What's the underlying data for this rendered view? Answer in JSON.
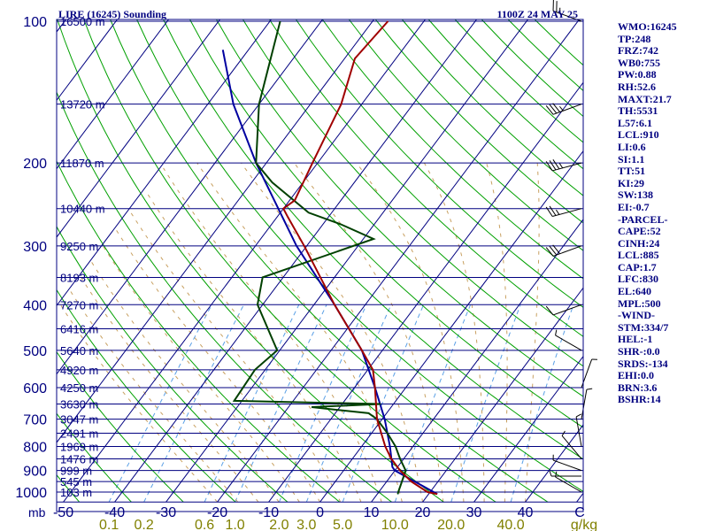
{
  "header": {
    "title": "LIRE (16245) Sounding",
    "time": "1100Z 24 MAY 25"
  },
  "indices": [
    "WMO:16245",
    "TP:248",
    "FRZ:742",
    "WB0:755",
    "PW:0.88",
    "RH:52.6",
    "MAXT:21.7",
    "TH:5531",
    "L57:6.1",
    "LCL:910",
    "LI:0.6",
    "SI:1.1",
    "TT:51",
    "KI:29",
    "SW:138",
    "EI:-0.7",
    "-PARCEL-",
    "CAPE:52",
    "CINH:24",
    "LCL:885",
    "CAP:1.7",
    "LFC:830",
    "EL:640",
    "MPL:500",
    "-WIND-",
    "STM:334/7",
    "HEL:-1",
    "SHR-:0.0",
    "SRDS:-134",
    "EHI:0.0",
    "BRN:3.6",
    "BSHR:14"
  ],
  "colors": {
    "background": "#ffffff",
    "text": "#000080",
    "isobar": "#000080",
    "isotherm": "#000080",
    "dry_adiabat": "#00a000",
    "moist_adiabat": "#c8a060",
    "mixing_ratio": "#5aa0e6",
    "temperature": "#a00000",
    "dewpoint": "#004000",
    "parcel": "#0000a0",
    "wind": "#000000",
    "mixing_label": "#808000"
  },
  "chart_data": {
    "type": "skew-t",
    "pressure_levels": [
      100,
      200,
      300,
      400,
      500,
      600,
      700,
      800,
      900,
      1000
    ],
    "pressure_unit_label": "mb",
    "temperature_ticks": [
      -50,
      -40,
      -30,
      -20,
      -10,
      0,
      10,
      20,
      30,
      40
    ],
    "temperature_unit_label": "C",
    "mixing_ratio_ticks": [
      "0.1",
      "0.2",
      "0.6",
      "1.0",
      "2.0",
      "3.0",
      "5.0",
      "10.0",
      "20.0",
      "40.0"
    ],
    "mixing_ratio_unit_label": "g/kg",
    "height_labels": [
      {
        "p": 100,
        "t": "16500 m"
      },
      {
        "p": 150,
        "t": "13720 m"
      },
      {
        "p": 200,
        "t": "11870 m"
      },
      {
        "p": 250,
        "t": "10440 m"
      },
      {
        "p": 300,
        "t": "9250 m"
      },
      {
        "p": 350,
        "t": "8193 m"
      },
      {
        "p": 400,
        "t": "7270 m"
      },
      {
        "p": 450,
        "t": "6416 m"
      },
      {
        "p": 500,
        "t": "5640 m"
      },
      {
        "p": 550,
        "t": "4920 m"
      },
      {
        "p": 600,
        "t": "4250 m"
      },
      {
        "p": 650,
        "t": "3630 m"
      },
      {
        "p": 700,
        "t": "3047 m"
      },
      {
        "p": 750,
        "t": "2491 m"
      },
      {
        "p": 800,
        "t": "1969 m"
      },
      {
        "p": 850,
        "t": "1476 m"
      },
      {
        "p": 900,
        "t": "999 m"
      },
      {
        "p": 950,
        "t": "545 m"
      },
      {
        "p": 1000,
        "t": "103 m"
      }
    ],
    "temperature_profile": [
      {
        "p": 1010,
        "t": 21.7
      },
      {
        "p": 1000,
        "t": 19.5
      },
      {
        "p": 950,
        "t": 14.8
      },
      {
        "p": 900,
        "t": 11.0
      },
      {
        "p": 850,
        "t": 7.6
      },
      {
        "p": 800,
        "t": 4.6
      },
      {
        "p": 700,
        "t": -1.0
      },
      {
        "p": 650,
        "t": -3.4
      },
      {
        "p": 600,
        "t": -6.0
      },
      {
        "p": 550,
        "t": -9.0
      },
      {
        "p": 500,
        "t": -14.0
      },
      {
        "p": 400,
        "t": -26.0
      },
      {
        "p": 300,
        "t": -40.5
      },
      {
        "p": 260,
        "t": -48.0
      },
      {
        "p": 250,
        "t": -50.0
      },
      {
        "p": 240,
        "t": -49.0
      },
      {
        "p": 200,
        "t": -51.0
      },
      {
        "p": 150,
        "t": -54.0
      },
      {
        "p": 120,
        "t": -58.0
      },
      {
        "p": 100,
        "t": -57.0
      }
    ],
    "dewpoint_profile": [
      {
        "p": 1010,
        "t": 14.0
      },
      {
        "p": 1000,
        "t": 13.8
      },
      {
        "p": 900,
        "t": 12.1
      },
      {
        "p": 850,
        "t": 9.3
      },
      {
        "p": 800,
        "t": 6.6
      },
      {
        "p": 750,
        "t": 3.1
      },
      {
        "p": 700,
        "t": -1.0
      },
      {
        "p": 680,
        "t": -3.5
      },
      {
        "p": 660,
        "t": -15.5
      },
      {
        "p": 650,
        "t": -2.5
      },
      {
        "p": 640,
        "t": -31.5
      },
      {
        "p": 550,
        "t": -32.0
      },
      {
        "p": 500,
        "t": -30.5
      },
      {
        "p": 400,
        "t": -41.0
      },
      {
        "p": 350,
        "t": -44.0
      },
      {
        "p": 290,
        "t": -28.0
      },
      {
        "p": 270,
        "t": -36.5
      },
      {
        "p": 255,
        "t": -44.5
      },
      {
        "p": 220,
        "t": -56.0
      },
      {
        "p": 200,
        "t": -62.0
      },
      {
        "p": 150,
        "t": -70.0
      },
      {
        "p": 100,
        "t": -78.0
      }
    ],
    "parcel_profile": [
      {
        "p": 1010,
        "t": 21.7
      },
      {
        "p": 900,
        "t": 10.0
      },
      {
        "p": 885,
        "t": 9.0
      },
      {
        "p": 800,
        "t": 5.5
      },
      {
        "p": 700,
        "t": 0.5
      },
      {
        "p": 600,
        "t": -6.0
      },
      {
        "p": 500,
        "t": -14.0
      },
      {
        "p": 400,
        "t": -26.0
      },
      {
        "p": 300,
        "t": -42.0
      },
      {
        "p": 200,
        "t": -62.0
      },
      {
        "p": 150,
        "t": -75.0
      },
      {
        "p": 115,
        "t": -85.0
      }
    ],
    "wind_barbs": [
      {
        "p": 100,
        "dir": 290,
        "spd": 25
      },
      {
        "p": 150,
        "dir": 250,
        "spd": 35
      },
      {
        "p": 200,
        "dir": 255,
        "spd": 35
      },
      {
        "p": 250,
        "dir": 255,
        "spd": 25
      },
      {
        "p": 300,
        "dir": 250,
        "spd": 30
      },
      {
        "p": 400,
        "dir": 250,
        "spd": 10
      },
      {
        "p": 500,
        "dir": 300,
        "spd": 5
      },
      {
        "p": 600,
        "dir": 20,
        "spd": 5
      },
      {
        "p": 700,
        "dir": 10,
        "spd": 5
      },
      {
        "p": 800,
        "dir": 350,
        "spd": 5
      },
      {
        "p": 850,
        "dir": 320,
        "spd": 5
      },
      {
        "p": 900,
        "dir": 290,
        "spd": 5
      },
      {
        "p": 925,
        "dir": 270,
        "spd": 5
      },
      {
        "p": 1000,
        "dir": 300,
        "spd": 5
      }
    ]
  }
}
